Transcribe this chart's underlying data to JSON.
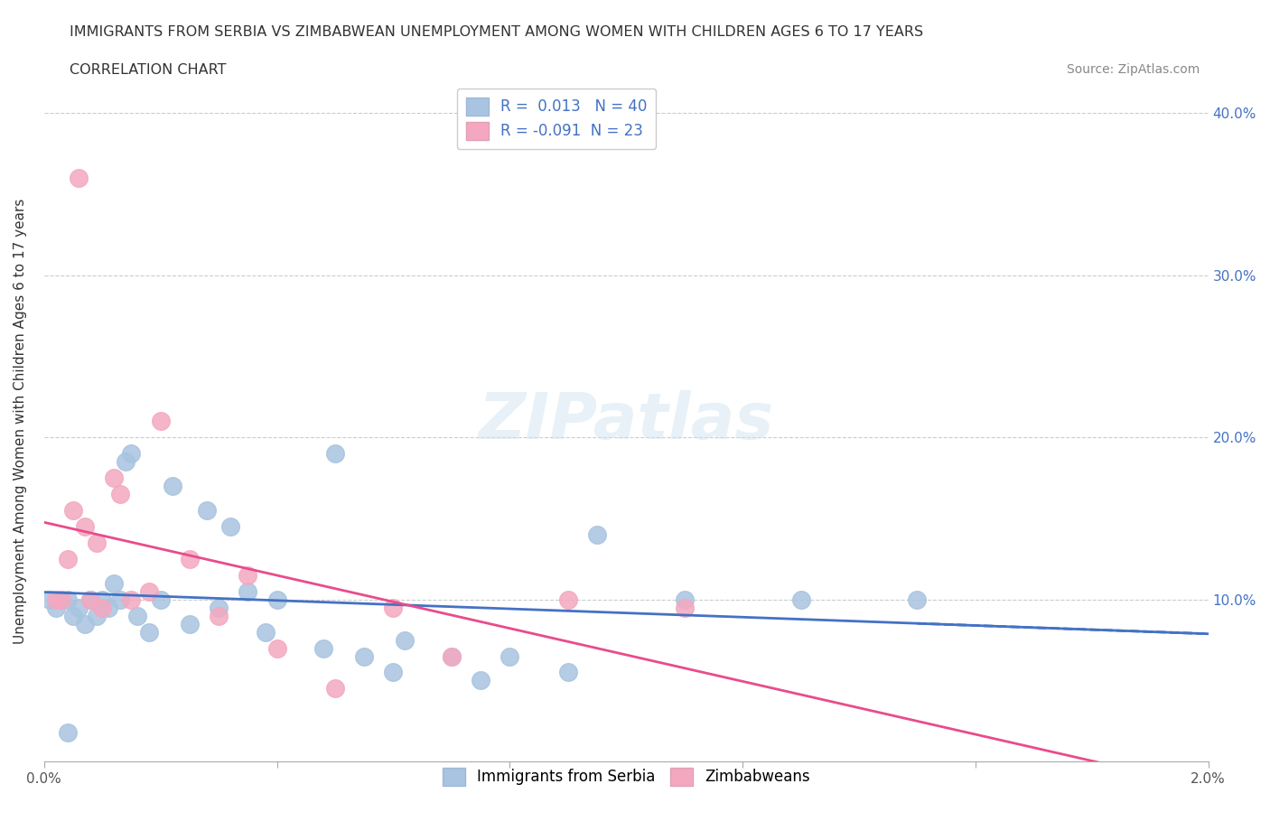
{
  "title": "IMMIGRANTS FROM SERBIA VS ZIMBABWEAN UNEMPLOYMENT AMONG WOMEN WITH CHILDREN AGES 6 TO 17 YEARS",
  "subtitle": "CORRELATION CHART",
  "source": "Source: ZipAtlas.com",
  "xlabel": "Immigrants from Serbia",
  "ylabel": "Unemployment Among Women with Children Ages 6 to 17 years",
  "x_min": 0.0,
  "x_max": 0.02,
  "y_min": 0.0,
  "y_max": 0.42,
  "x_ticks": [
    0.0,
    0.004,
    0.008,
    0.012,
    0.016,
    0.02
  ],
  "x_tick_labels": [
    "0.0%",
    "",
    "",
    "",
    "",
    "2.0%"
  ],
  "y_ticks": [
    0.0,
    0.1,
    0.2,
    0.3,
    0.4
  ],
  "y_tick_labels": [
    "",
    "10.0%",
    "20.0%",
    "30.0%",
    "40.0%"
  ],
  "r_serbia": 0.013,
  "n_serbia": 40,
  "r_zimbabwe": -0.091,
  "n_zimbabwe": 23,
  "color_serbia": "#a8c4e0",
  "color_zimbabwe": "#f4a8c0",
  "line_color_serbia": "#4472c4",
  "line_color_zimbabwe": "#e84c8b",
  "watermark": "ZIPatlas",
  "serbia_x": [
    0.0008,
    0.0004,
    0.0006,
    0.001,
    0.0012,
    0.0005,
    0.0007,
    0.0003,
    0.0002,
    0.0001,
    0.0015,
    0.0014,
    0.0013,
    0.0009,
    0.0011,
    0.002,
    0.0018,
    0.0016,
    0.0025,
    0.003,
    0.0022,
    0.0028,
    0.0032,
    0.0035,
    0.004,
    0.0038,
    0.005,
    0.0048,
    0.0055,
    0.006,
    0.0062,
    0.007,
    0.0075,
    0.008,
    0.009,
    0.0095,
    0.011,
    0.013,
    0.015,
    0.0004
  ],
  "serbia_y": [
    0.1,
    0.1,
    0.095,
    0.1,
    0.11,
    0.09,
    0.085,
    0.1,
    0.095,
    0.1,
    0.19,
    0.185,
    0.1,
    0.09,
    0.095,
    0.1,
    0.08,
    0.09,
    0.085,
    0.095,
    0.17,
    0.155,
    0.145,
    0.105,
    0.1,
    0.08,
    0.19,
    0.07,
    0.065,
    0.055,
    0.075,
    0.065,
    0.05,
    0.065,
    0.055,
    0.14,
    0.1,
    0.1,
    0.1,
    0.018
  ],
  "zimbabwe_x": [
    0.0003,
    0.0006,
    0.0008,
    0.001,
    0.0012,
    0.0005,
    0.0007,
    0.0009,
    0.0004,
    0.0002,
    0.0015,
    0.0013,
    0.0018,
    0.002,
    0.0025,
    0.003,
    0.0035,
    0.004,
    0.005,
    0.006,
    0.007,
    0.009,
    0.011
  ],
  "zimbabwe_y": [
    0.1,
    0.36,
    0.1,
    0.095,
    0.175,
    0.155,
    0.145,
    0.135,
    0.125,
    0.1,
    0.1,
    0.165,
    0.105,
    0.21,
    0.125,
    0.09,
    0.115,
    0.07,
    0.045,
    0.095,
    0.065,
    0.1,
    0.095
  ]
}
